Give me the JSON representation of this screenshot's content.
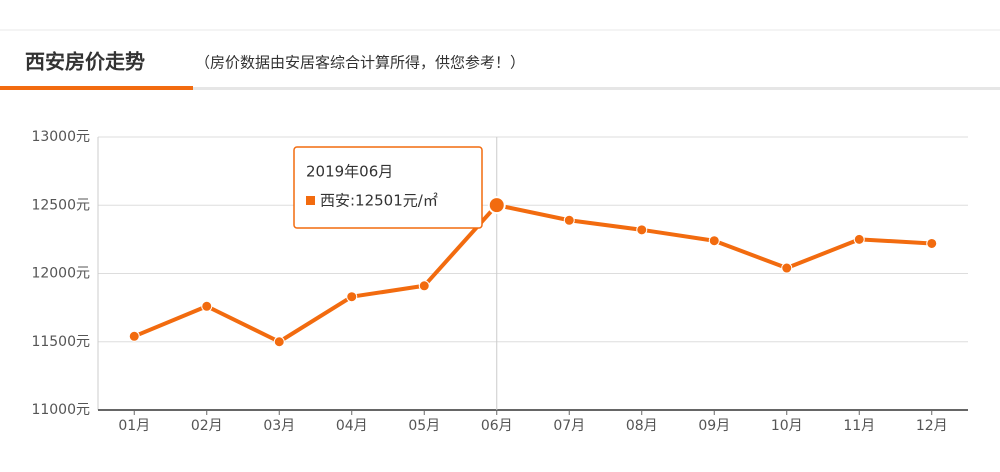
{
  "chart_data": {
    "type": "line",
    "title": "西安房价走势",
    "subtitle": "（房价数据由安居客综合计算所得，供您参考！）",
    "categories": [
      "01月",
      "02月",
      "03月",
      "04月",
      "05月",
      "06月",
      "07月",
      "08月",
      "09月",
      "10月",
      "11月",
      "12月"
    ],
    "series": [
      {
        "name": "西安",
        "color": "#f26b0f",
        "values": [
          11540,
          11760,
          11500,
          11830,
          11910,
          12501,
          12390,
          12320,
          12240,
          12040,
          12250,
          12220
        ]
      }
    ],
    "ylim": [
      11000,
      13000
    ],
    "yticks": [
      {
        "value": 11000,
        "label": "11000元"
      },
      {
        "value": 11500,
        "label": "11500元"
      },
      {
        "value": 12000,
        "label": "12000元"
      },
      {
        "value": 12500,
        "label": "12500元"
      },
      {
        "value": 13000,
        "label": "13000元"
      }
    ],
    "grid": true,
    "tooltip": {
      "index": 5,
      "title": "2019年06月",
      "text": "西安:12501元/㎡"
    }
  }
}
